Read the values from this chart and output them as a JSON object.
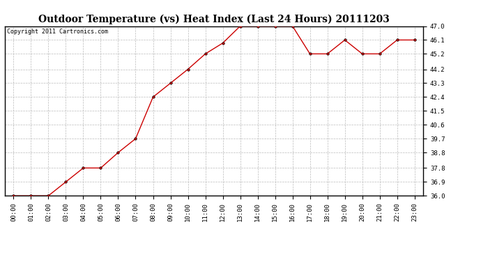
{
  "title": "Outdoor Temperature (vs) Heat Index (Last 24 Hours) 20111203",
  "copyright": "Copyright 2011 Cartronics.com",
  "x_labels": [
    "00:00",
    "01:00",
    "02:00",
    "03:00",
    "04:00",
    "05:00",
    "06:00",
    "07:00",
    "08:00",
    "09:00",
    "10:00",
    "11:00",
    "12:00",
    "13:00",
    "14:00",
    "15:00",
    "16:00",
    "17:00",
    "18:00",
    "19:00",
    "20:00",
    "21:00",
    "22:00",
    "23:00"
  ],
  "y_values": [
    36.0,
    36.0,
    36.0,
    36.9,
    37.8,
    37.8,
    38.8,
    39.7,
    42.4,
    43.3,
    44.2,
    45.2,
    45.9,
    47.0,
    47.0,
    47.0,
    47.0,
    45.2,
    45.2,
    46.1,
    45.2,
    45.2,
    46.1,
    46.1
  ],
  "line_color": "#cc0000",
  "marker": "o",
  "marker_size": 2.5,
  "marker_color": "#000000",
  "bg_color": "#ffffff",
  "plot_bg_color": "#ffffff",
  "grid_color": "#bbbbbb",
  "ylim_min": 36.0,
  "ylim_max": 47.0,
  "ytick_values": [
    36.0,
    36.9,
    37.8,
    38.8,
    39.7,
    40.6,
    41.5,
    42.4,
    43.3,
    44.2,
    45.2,
    46.1,
    47.0
  ],
  "title_fontsize": 10,
  "tick_fontsize": 6.5,
  "copyright_fontsize": 6
}
